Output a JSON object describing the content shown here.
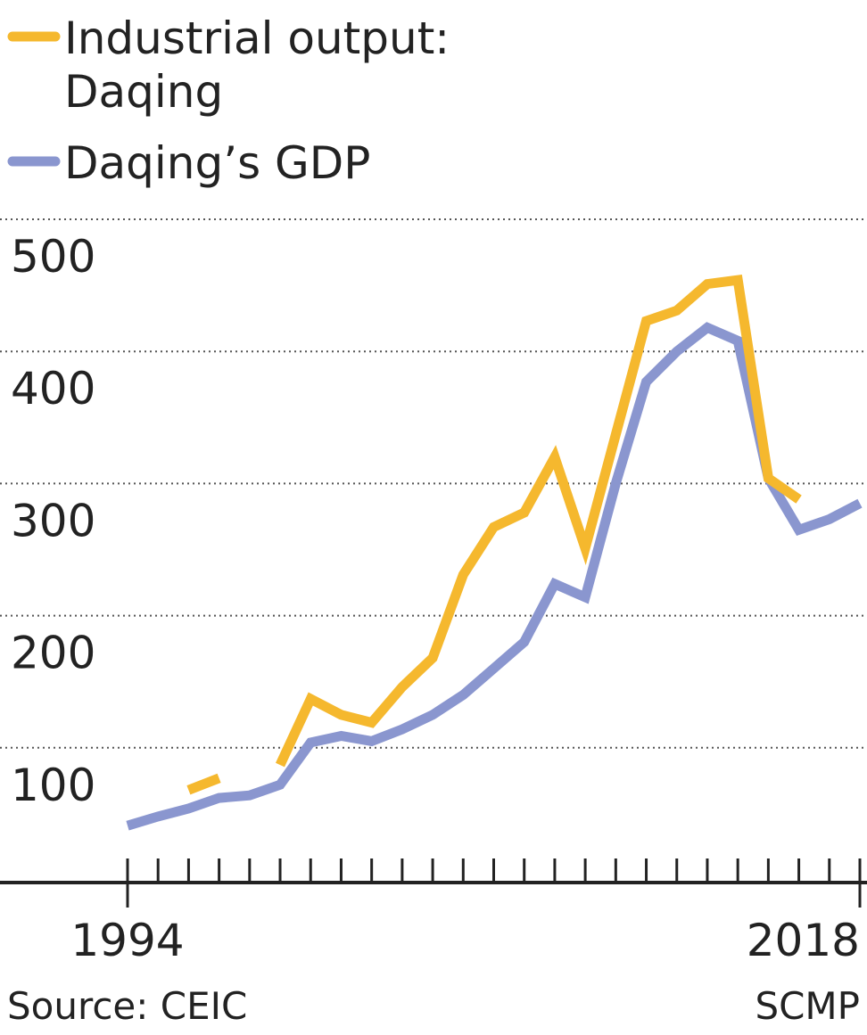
{
  "chart_data": {
    "type": "line",
    "x": [
      1994,
      1995,
      1996,
      1997,
      1998,
      1999,
      2000,
      2001,
      2002,
      2003,
      2004,
      2005,
      2006,
      2007,
      2008,
      2009,
      2010,
      2011,
      2012,
      2013,
      2014,
      2015,
      2016,
      2017,
      2018
    ],
    "x_start_label": "1994",
    "x_end_label": "2018",
    "xlim": [
      1994,
      2018
    ],
    "ylim": [
      0,
      500
    ],
    "y_ticks": [
      100,
      200,
      300,
      400,
      500
    ],
    "y_tick_labels": [
      "100",
      "200",
      "300",
      "400",
      "500"
    ],
    "grid": "horizontal-dotted",
    "series": [
      {
        "name": "Industrial output:",
        "name_line2": "Daqing",
        "color": "#F5B82E",
        "values": [
          null,
          null,
          68,
          77,
          null,
          87,
          137,
          125,
          119,
          146,
          168,
          231,
          267,
          278,
          320,
          251,
          337,
          423,
          431,
          451,
          454,
          304,
          288,
          null,
          null
        ]
      },
      {
        "name": "Daqing’s GDP",
        "color": "#8A96CF",
        "values": [
          41,
          48,
          54,
          62,
          64,
          72,
          104,
          109,
          105,
          114,
          125,
          140,
          160,
          180,
          224,
          214,
          300,
          377,
          400,
          418,
          408,
          304,
          265,
          273,
          285
        ]
      }
    ],
    "source": "Source: CEIC",
    "credit": "SCMP"
  }
}
